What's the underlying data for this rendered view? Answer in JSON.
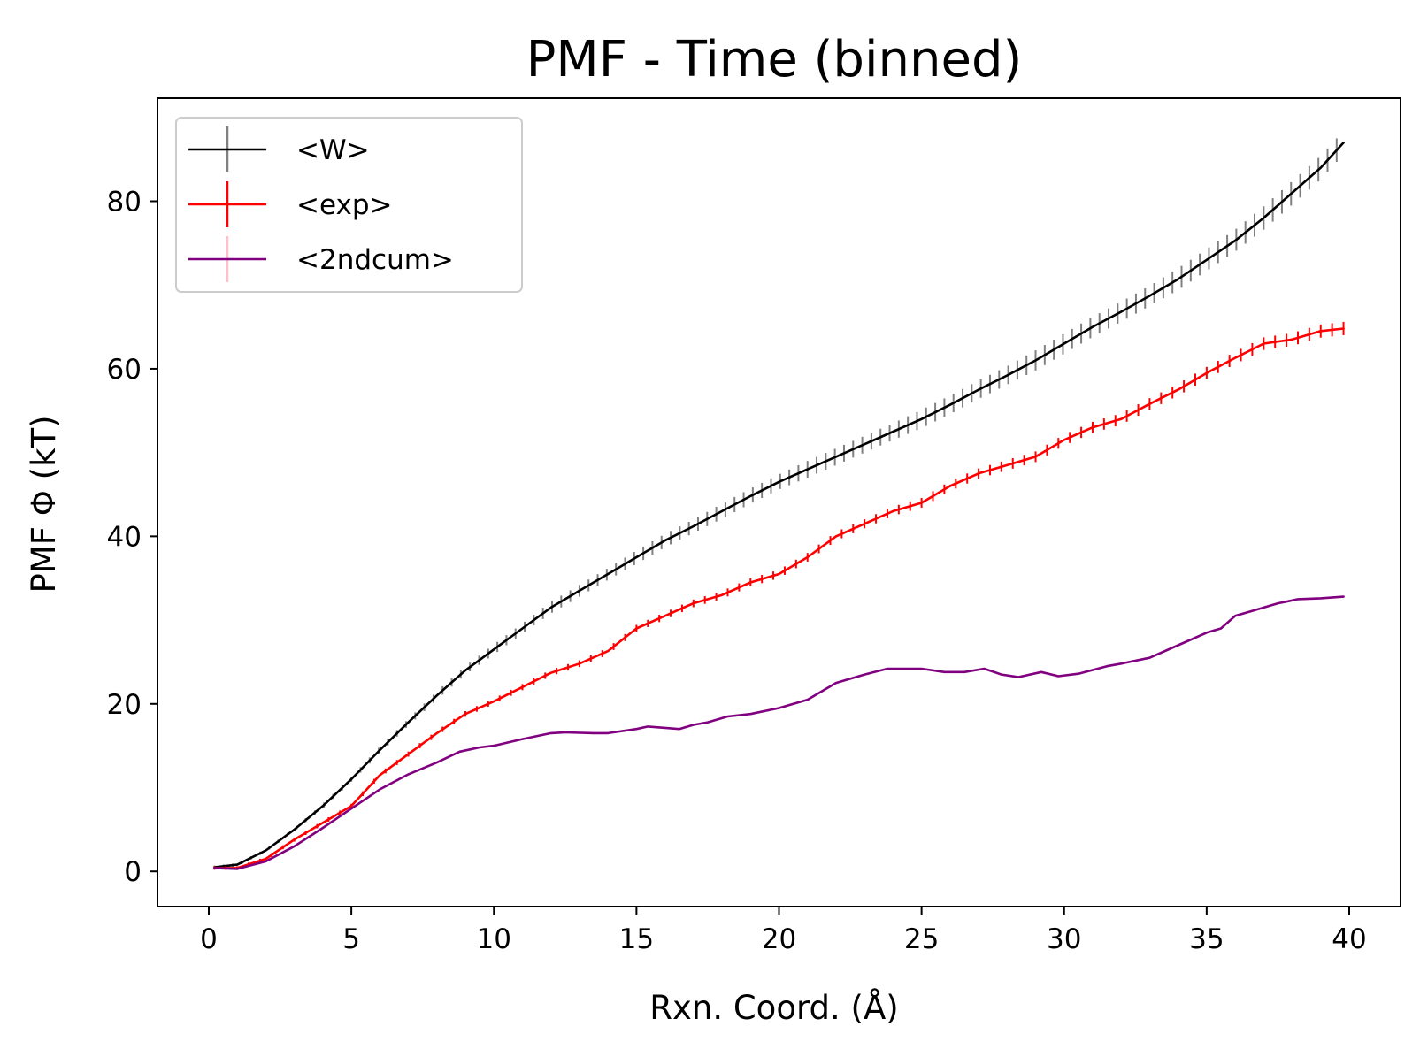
{
  "chart_data": {
    "type": "line",
    "title": "PMF - Time (binned)",
    "xlabel": "Rxn. Coord. (Å)",
    "ylabel": "PMF Φ (kT)",
    "xlim": [
      -1.8,
      41.8
    ],
    "ylim": [
      -4.2,
      92.3
    ],
    "xticks": [
      0,
      5,
      10,
      15,
      20,
      25,
      30,
      35,
      40
    ],
    "yticks": [
      0,
      20,
      40,
      60,
      80
    ],
    "grid": false,
    "legend_position": "top-left",
    "series": [
      {
        "name": "<W>",
        "color": "#000000",
        "errorbar_color": "#808080",
        "x": [
          0.2,
          1,
          2,
          3,
          4,
          5,
          6,
          7,
          8,
          9,
          10,
          11,
          12,
          13,
          14,
          15,
          16,
          17,
          18,
          19,
          20,
          21,
          22,
          23,
          24,
          25,
          26,
          27,
          28,
          29,
          30,
          31,
          32,
          33,
          34,
          35,
          36,
          37,
          38,
          39,
          39.8
        ],
        "y": [
          0.5,
          0.8,
          2.5,
          5.0,
          7.8,
          11.0,
          14.5,
          17.8,
          21.0,
          24.0,
          26.5,
          29.0,
          31.5,
          33.5,
          35.5,
          37.5,
          39.5,
          41.2,
          43.0,
          44.8,
          46.5,
          48.0,
          49.5,
          51.0,
          52.5,
          54.0,
          55.7,
          57.5,
          59.2,
          61.0,
          63.0,
          65.0,
          66.8,
          68.7,
          70.7,
          73.0,
          75.3,
          78.0,
          81.0,
          84.0,
          87.0
        ],
        "error": [
          0.2,
          0.2,
          0.2,
          0.2,
          0.3,
          0.3,
          0.4,
          0.4,
          0.5,
          0.5,
          0.6,
          0.6,
          0.7,
          0.7,
          0.7,
          0.8,
          0.8,
          0.8,
          0.9,
          0.9,
          0.9,
          1.0,
          1.0,
          1.0,
          1.0,
          1.1,
          1.1,
          1.1,
          1.1,
          1.2,
          1.2,
          1.2,
          1.2,
          1.2,
          1.3,
          1.3,
          1.3,
          1.4,
          1.4,
          1.4,
          1.4
        ]
      },
      {
        "name": "<exp>",
        "color": "#ff0000",
        "errorbar_color": "#ff0000",
        "x": [
          0.2,
          1,
          2,
          3,
          4,
          5,
          6,
          7,
          8,
          9,
          10,
          11,
          12,
          13,
          14,
          15,
          16,
          17,
          18,
          19,
          20,
          21,
          22,
          23,
          24,
          25,
          26,
          27,
          28,
          29,
          30,
          31,
          32,
          33,
          34,
          35,
          36,
          37,
          38,
          39,
          39.8
        ],
        "y": [
          0.4,
          0.4,
          1.5,
          3.8,
          5.8,
          7.8,
          11.5,
          14.0,
          16.5,
          18.8,
          20.3,
          22.0,
          23.7,
          24.8,
          26.3,
          29.0,
          30.5,
          32.0,
          33.0,
          34.5,
          35.5,
          37.5,
          40.0,
          41.5,
          43.0,
          44.0,
          46.0,
          47.5,
          48.5,
          49.5,
          51.5,
          53.0,
          54.0,
          55.8,
          57.5,
          59.5,
          61.3,
          63.0,
          63.5,
          64.5,
          64.8
        ]
      },
      {
        "name": "<2ndcum>",
        "color": "#800080",
        "errorbar_color": "#ffc0cb",
        "x": [
          0.2,
          1,
          2,
          3,
          4,
          5,
          6,
          7,
          8,
          8.8,
          9.5,
          10,
          11,
          12,
          12.5,
          13.5,
          14,
          15,
          15.4,
          16.5,
          17,
          17.5,
          18.2,
          19,
          20,
          21,
          22,
          23,
          23.8,
          25,
          25.8,
          26.5,
          27.2,
          27.8,
          28.4,
          29.2,
          29.8,
          30.5,
          31.5,
          32,
          33,
          34,
          35,
          35.5,
          36,
          36.5,
          37,
          37.5,
          37.8,
          38.2,
          39,
          39.8
        ],
        "y": [
          0.4,
          0.3,
          1.2,
          3.0,
          5.2,
          7.5,
          9.8,
          11.6,
          13.0,
          14.3,
          14.8,
          15.0,
          15.8,
          16.5,
          16.6,
          16.5,
          16.5,
          17.0,
          17.3,
          17.0,
          17.5,
          17.8,
          18.5,
          18.8,
          19.5,
          20.5,
          22.5,
          23.5,
          24.2,
          24.2,
          23.8,
          23.8,
          24.2,
          23.5,
          23.2,
          23.8,
          23.3,
          23.6,
          24.5,
          24.8,
          25.5,
          27.0,
          28.5,
          29.0,
          30.5,
          31.0,
          31.5,
          32.0,
          32.2,
          32.5,
          32.6,
          32.8
        ]
      }
    ]
  }
}
